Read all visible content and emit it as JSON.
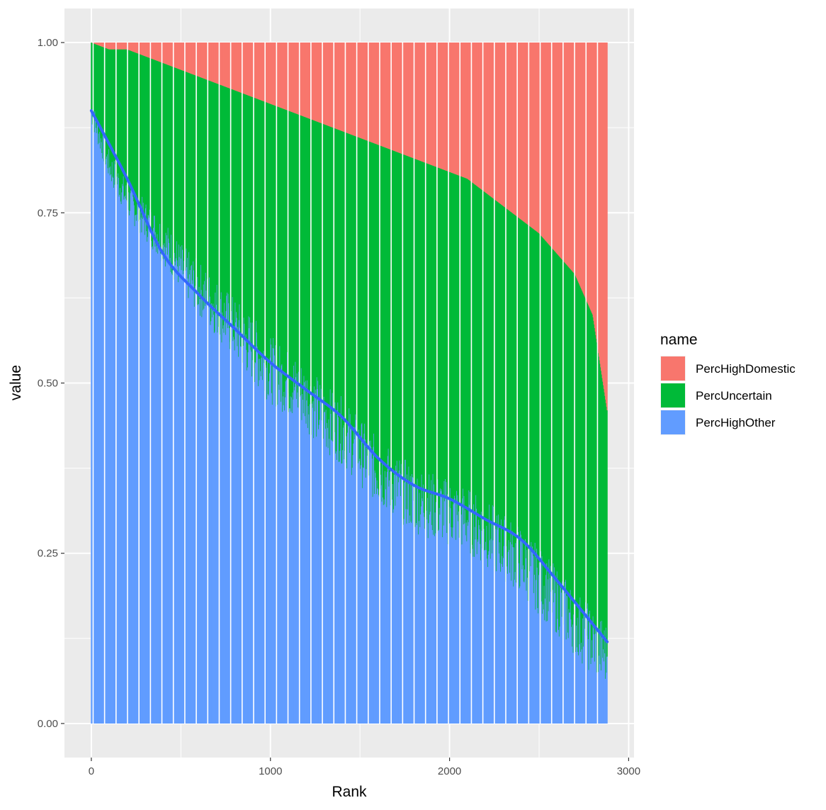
{
  "chart_data": {
    "type": "bar",
    "stacked": true,
    "xlabel": "Rank",
    "ylabel": "value",
    "xlim": [
      -150,
      3030
    ],
    "ylim": [
      -0.05,
      1.05
    ],
    "x_ticks": [
      0,
      1000,
      2000,
      3000
    ],
    "x_tick_labels": [
      "0",
      "1000",
      "2000",
      "3000"
    ],
    "y_ticks": [
      0,
      0.25,
      0.5,
      0.75,
      1.0
    ],
    "y_tick_labels": [
      "0.00",
      "0.25",
      "0.50",
      "0.75",
      "1.00"
    ],
    "grid": true,
    "legend": {
      "title": "name",
      "position": "right",
      "entries": [
        {
          "label": "PercHighDomestic",
          "color": "#F8766D"
        },
        {
          "label": "PercUncertain",
          "color": "#00BA38"
        },
        {
          "label": "PercHighOther",
          "color": "#619CFF"
        }
      ]
    },
    "x": [
      0,
      100,
      200,
      300,
      400,
      500,
      600,
      700,
      800,
      900,
      1000,
      1100,
      1200,
      1300,
      1400,
      1500,
      1600,
      1700,
      1800,
      1900,
      2000,
      2100,
      2200,
      2300,
      2400,
      2500,
      2600,
      2700,
      2800,
      2880
    ],
    "series": [
      {
        "name": "PercHighOther",
        "values": [
          0.9,
          0.82,
          0.77,
          0.74,
          0.71,
          0.67,
          0.64,
          0.61,
          0.58,
          0.55,
          0.52,
          0.5,
          0.48,
          0.45,
          0.43,
          0.4,
          0.37,
          0.35,
          0.33,
          0.32,
          0.31,
          0.3,
          0.28,
          0.26,
          0.24,
          0.21,
          0.18,
          0.15,
          0.12,
          0.1
        ]
      },
      {
        "name": "PercUncertain",
        "values": [
          0.1,
          0.17,
          0.22,
          0.24,
          0.26,
          0.29,
          0.31,
          0.33,
          0.35,
          0.37,
          0.39,
          0.4,
          0.41,
          0.43,
          0.44,
          0.46,
          0.48,
          0.49,
          0.5,
          0.5,
          0.5,
          0.5,
          0.5,
          0.5,
          0.5,
          0.51,
          0.51,
          0.51,
          0.48,
          0.36
        ]
      },
      {
        "name": "PercHighDomestic",
        "values": [
          0.0,
          0.01,
          0.01,
          0.02,
          0.03,
          0.04,
          0.05,
          0.06,
          0.07,
          0.08,
          0.09,
          0.1,
          0.11,
          0.12,
          0.13,
          0.14,
          0.15,
          0.16,
          0.17,
          0.18,
          0.19,
          0.2,
          0.22,
          0.24,
          0.26,
          0.28,
          0.31,
          0.34,
          0.4,
          0.54
        ]
      }
    ],
    "smooth_line": {
      "x": [
        0,
        200,
        400,
        600,
        800,
        1000,
        1200,
        1400,
        1600,
        1800,
        2000,
        2200,
        2400,
        2600,
        2880
      ],
      "y": [
        0.9,
        0.8,
        0.69,
        0.63,
        0.58,
        0.53,
        0.49,
        0.45,
        0.39,
        0.35,
        0.33,
        0.3,
        0.27,
        0.21,
        0.12
      ],
      "color": "#3366FF"
    }
  }
}
